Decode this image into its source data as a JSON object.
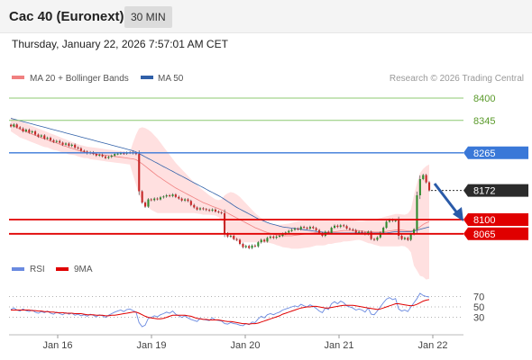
{
  "header": {
    "title": "Cac 40 (Euronext)",
    "interval": "30 MIN",
    "timestamp": "Thursday, January 22, 2026 7:57:01 AM CET"
  },
  "legend": {
    "items": [
      {
        "label": "MA 20 + Bollinger Bands",
        "color": "#f08080"
      },
      {
        "label": "MA 50",
        "color": "#3060a8"
      }
    ],
    "copyright": "Research © 2026 Trading Central"
  },
  "colors": {
    "up": "#2e8b2e",
    "down": "#c62828",
    "bollinger_fill": "#ffd6d6",
    "ma20": "#f08080",
    "ma50": "#3060a8",
    "resistance": "#8cc870",
    "pivot": "#3a78d8",
    "support": "#e00000",
    "arrow": "#2a5aa8",
    "rsi": "#6a8ae0",
    "rsi_ma": "#e00000"
  },
  "chart_data": [
    {
      "type": "candlestick",
      "title": "Cac 40 (Euronext)",
      "ylim": [
        8020,
        8420
      ],
      "x_labels": [
        "Jan 16",
        "Jan 19",
        "Jan 20",
        "Jan 21",
        "Jan 22"
      ],
      "levels": [
        {
          "value": 8400,
          "label": "8400",
          "kind": "resistance"
        },
        {
          "value": 8345,
          "label": "8345",
          "kind": "resistance"
        },
        {
          "value": 8265,
          "label": "8265",
          "kind": "pivot"
        },
        {
          "value": 8172,
          "label": "8172",
          "kind": "last"
        },
        {
          "value": 8100,
          "label": "8100",
          "kind": "support"
        },
        {
          "value": 8065,
          "label": "8065",
          "kind": "support"
        }
      ],
      "closes": [
        8330,
        8335,
        8328,
        8325,
        8318,
        8322,
        8315,
        8318,
        8310,
        8305,
        8308,
        8300,
        8302,
        8296,
        8292,
        8294,
        8290,
        8285,
        8288,
        8282,
        8285,
        8278,
        8276,
        8270,
        8268,
        8264,
        8266,
        8262,
        8258,
        8260,
        8256,
        8252,
        8255,
        8258,
        8262,
        8263,
        8264,
        8263,
        8265,
        8266,
        8264,
        8262,
        8170,
        8142,
        8132,
        8150,
        8148,
        8152,
        8150,
        8155,
        8157,
        8160,
        8158,
        8162,
        8156,
        8152,
        8147,
        8150,
        8146,
        8136,
        8130,
        8125,
        8128,
        8126,
        8124,
        8122,
        8125,
        8120,
        8118,
        8116,
        8066,
        8058,
        8060,
        8052,
        8050,
        8040,
        8032,
        8035,
        8030,
        8036,
        8034,
        8044,
        8050,
        8046,
        8055,
        8058,
        8055,
        8058,
        8060,
        8065,
        8068,
        8072,
        8075,
        8078,
        8076,
        8082,
        8080,
        8078,
        8082,
        8079,
        8074,
        8066,
        8060,
        8070,
        8067,
        8080,
        8085,
        8082,
        8086,
        8084,
        8078,
        8076,
        8074,
        8068,
        8070,
        8068,
        8064,
        8070,
        8052,
        8050,
        8056,
        8068,
        8080,
        8095,
        8100,
        8097,
        8098,
        8060,
        8052,
        8055,
        8050,
        8064,
        8076,
        8160,
        8200,
        8210,
        8192,
        8172
      ],
      "ma20": [
        8335,
        8331,
        8327,
        8323,
        8320,
        8317,
        8314,
        8311,
        8308,
        8305,
        8302,
        8299,
        8297,
        8294,
        8291,
        8289,
        8286,
        8283,
        8281,
        8278,
        8276,
        8274,
        8271,
        8269,
        8267,
        8266,
        8264,
        8263,
        8262,
        8261,
        8260,
        8259,
        8258,
        8257,
        8256,
        8255,
        8254,
        8253,
        8252,
        8251,
        8250,
        8248,
        8243,
        8238,
        8232,
        8226,
        8220,
        8214,
        8208,
        8203,
        8198,
        8193,
        8188,
        8183,
        8178,
        8174,
        8170,
        8166,
        8162,
        8158,
        8154,
        8150,
        8146,
        8142,
        8139,
        8136,
        8133,
        8130,
        8127,
        8124,
        8120,
        8116,
        8112,
        8108,
        8104,
        8100,
        8096,
        8092,
        8088,
        8084,
        8080,
        8077,
        8074,
        8071,
        8068,
        8066,
        8064,
        8062,
        8061,
        8060,
        8060,
        8060,
        8060,
        8061,
        8062,
        8063,
        8064,
        8065,
        8066,
        8067,
        8068,
        8068,
        8068,
        8068,
        8069,
        8069,
        8070,
        8071,
        8072,
        8073,
        8073,
        8073,
        8073,
        8073,
        8073,
        8072,
        8071,
        8070,
        8070,
        8069,
        8069,
        8069,
        8070,
        8071,
        8072,
        8073,
        8074,
        8074,
        8074,
        8073,
        8072,
        8072,
        8073,
        8077,
        8082,
        8088,
        8092,
        8095
      ],
      "bb_upper": [
        8352,
        8349,
        8346,
        8343,
        8340,
        8337,
        8334,
        8331,
        8328,
        8325,
        8322,
        8319,
        8316,
        8313,
        8310,
        8307,
        8304,
        8301,
        8298,
        8295,
        8292,
        8289,
        8286,
        8284,
        8282,
        8280,
        8279,
        8278,
        8277,
        8276,
        8275,
        8274,
        8273,
        8272,
        8271,
        8270,
        8269,
        8268,
        8267,
        8266,
        8290,
        8310,
        8325,
        8328,
        8326,
        8322,
        8316,
        8308,
        8300,
        8290,
        8280,
        8270,
        8260,
        8250,
        8240,
        8232,
        8224,
        8216,
        8208,
        8200,
        8192,
        8185,
        8178,
        8172,
        8166,
        8160,
        8155,
        8150,
        8148,
        8150,
        8160,
        8165,
        8168,
        8166,
        8162,
        8156,
        8148,
        8140,
        8132,
        8124,
        8116,
        8110,
        8104,
        8098,
        8093,
        8090,
        8088,
        8087,
        8087,
        8088,
        8089,
        8090,
        8092,
        8094,
        8096,
        8097,
        8098,
        8099,
        8100,
        8100,
        8100,
        8100,
        8100,
        8099,
        8098,
        8098,
        8098,
        8099,
        8100,
        8100,
        8100,
        8099,
        8098,
        8097,
        8096,
        8096,
        8097,
        8098,
        8099,
        8100,
        8102,
        8104,
        8106,
        8108,
        8110,
        8112,
        8114,
        8114,
        8113,
        8112,
        8115,
        8125,
        8160,
        8190,
        8215,
        8225,
        8232,
        8236
      ],
      "bb_lower": [
        8318,
        8313,
        8308,
        8303,
        8300,
        8297,
        8294,
        8291,
        8288,
        8285,
        8282,
        8279,
        8278,
        8275,
        8272,
        8271,
        8268,
        8265,
        8264,
        8261,
        8260,
        8259,
        8256,
        8254,
        8252,
        8252,
        8249,
        8248,
        8247,
        8246,
        8245,
        8244,
        8243,
        8242,
        8241,
        8240,
        8239,
        8238,
        8237,
        8236,
        8210,
        8186,
        8161,
        8148,
        8138,
        8130,
        8124,
        8120,
        8116,
        8116,
        8116,
        8116,
        8116,
        8116,
        8116,
        8116,
        8116,
        8116,
        8116,
        8116,
        8116,
        8115,
        8114,
        8112,
        8112,
        8112,
        8111,
        8110,
        8106,
        8098,
        8080,
        8067,
        8056,
        8050,
        8046,
        8044,
        8044,
        8044,
        8044,
        8044,
        8044,
        8044,
        8044,
        8044,
        8043,
        8042,
        8040,
        8037,
        8035,
        8032,
        8031,
        8030,
        8028,
        8028,
        8028,
        8029,
        8030,
        8031,
        8032,
        8034,
        8036,
        8036,
        8036,
        8037,
        8040,
        8040,
        8042,
        8043,
        8044,
        8046,
        8046,
        8047,
        8048,
        8049,
        8050,
        8048,
        8045,
        8042,
        8041,
        8038,
        8036,
        8034,
        8034,
        8034,
        8034,
        8034,
        8034,
        8034,
        8035,
        8034,
        8029,
        8019,
        7986,
        7974,
        7961,
        7959,
        7952,
        7954
      ],
      "ma50": [
        8350,
        8348,
        8346,
        8344,
        8342,
        8340,
        8338,
        8336,
        8334,
        8332,
        8330,
        8328,
        8326,
        8324,
        8322,
        8320,
        8318,
        8316,
        8314,
        8312,
        8310,
        8308,
        8306,
        8304,
        8302,
        8300,
        8298,
        8296,
        8294,
        8292,
        8290,
        8288,
        8286,
        8284,
        8282,
        8280,
        8278,
        8276,
        8274,
        8272,
        8270,
        8267,
        8263,
        8259,
        8255,
        8251,
        8247,
        8243,
        8239,
        8235,
        8231,
        8227,
        8223,
        8219,
        8215,
        8211,
        8207,
        8203,
        8199,
        8195,
        8191,
        8187,
        8183,
        8179,
        8175,
        8171,
        8167,
        8163,
        8159,
        8155,
        8150,
        8145,
        8140,
        8135,
        8130,
        8126,
        8122,
        8118,
        8114,
        8110,
        8106,
        8102,
        8099,
        8096,
        8093,
        8090,
        8088,
        8086,
        8084,
        8082,
        8081,
        8080,
        8079,
        8078,
        8077,
        8076,
        8075,
        8074,
        8073,
        8072,
        8071,
        8070,
        8069,
        8068,
        8067,
        8067,
        8067,
        8067,
        8067,
        8067,
        8067,
        8067,
        8067,
        8067,
        8067,
        8067,
        8067,
        8067,
        8067,
        8067,
        8067,
        8067,
        8067,
        8067,
        8068,
        8069,
        8070,
        8070,
        8070,
        8070,
        8070,
        8070,
        8072,
        8074,
        8076,
        8078,
        8080,
        8082
      ]
    },
    {
      "type": "line",
      "title": "RSI",
      "ylim": [
        0,
        100
      ],
      "ticks": [
        70,
        50,
        30
      ],
      "series": [
        {
          "name": "RSI",
          "values": [
            45,
            48,
            44,
            42,
            46,
            43,
            41,
            44,
            40,
            38,
            41,
            39,
            42,
            38,
            36,
            40,
            37,
            35,
            39,
            36,
            38,
            34,
            36,
            33,
            35,
            32,
            36,
            34,
            31,
            35,
            33,
            30,
            34,
            37,
            40,
            42,
            44,
            41,
            45,
            46,
            43,
            40,
            20,
            12,
            15,
            28,
            30,
            33,
            31,
            35,
            37,
            40,
            38,
            42,
            36,
            33,
            30,
            33,
            29,
            26,
            24,
            22,
            28,
            26,
            25,
            24,
            29,
            25,
            24,
            23,
            18,
            17,
            20,
            18,
            17,
            15,
            14,
            18,
            16,
            21,
            20,
            27,
            32,
            29,
            35,
            37,
            35,
            38,
            40,
            44,
            46,
            48,
            50,
            52,
            50,
            55,
            52,
            50,
            54,
            51,
            47,
            42,
            39,
            48,
            45,
            56,
            60,
            56,
            61,
            58,
            52,
            50,
            48,
            44,
            46,
            44,
            40,
            48,
            36,
            35,
            42,
            50,
            58,
            65,
            68,
            64,
            66,
            46,
            42,
            44,
            41,
            50,
            58,
            66,
            76,
            72,
            70,
            69
          ]
        },
        {
          "name": "9MA",
          "values": [
            44,
            44,
            44,
            44,
            44,
            44,
            44,
            43,
            43,
            42,
            42,
            41,
            41,
            40,
            40,
            39,
            39,
            39,
            38,
            38,
            38,
            37,
            37,
            37,
            36,
            35,
            35,
            35,
            34,
            34,
            34,
            33,
            33,
            34,
            34,
            35,
            36,
            37,
            38,
            39,
            40,
            40,
            38,
            35,
            32,
            30,
            29,
            28,
            27,
            27,
            28,
            30,
            32,
            34,
            34,
            34,
            34,
            34,
            33,
            32,
            30,
            28,
            27,
            26,
            26,
            25,
            25,
            25,
            25,
            24,
            23,
            22,
            22,
            21,
            20,
            19,
            18,
            18,
            17,
            18,
            18,
            19,
            21,
            23,
            25,
            27,
            29,
            31,
            33,
            36,
            38,
            40,
            42,
            44,
            46,
            48,
            49,
            50,
            50,
            51,
            51,
            50,
            49,
            48,
            48,
            49,
            50,
            51,
            52,
            53,
            53,
            53,
            53,
            52,
            51,
            50,
            49,
            48,
            47,
            46,
            45,
            46,
            48,
            50,
            52,
            54,
            56,
            56,
            55,
            54,
            53,
            52,
            53,
            55,
            58,
            61,
            63,
            64
          ]
        }
      ]
    }
  ]
}
